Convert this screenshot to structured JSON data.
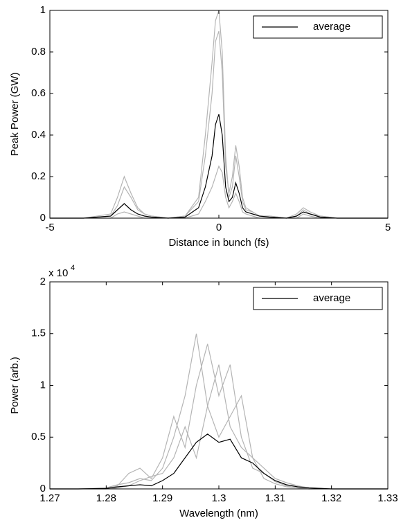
{
  "chart_data": [
    {
      "type": "line",
      "x_label": "Distance in bunch (fs)",
      "y_label": "Peak Power (GW)",
      "xlim": [
        -5,
        5
      ],
      "xticks": [
        -5,
        0,
        5
      ],
      "ylim": [
        0,
        1
      ],
      "yticks": [
        0,
        0.2,
        0.4,
        0.6,
        0.8,
        1
      ],
      "legend": "upper right",
      "x": [
        -5,
        -4,
        -3.2,
        -3,
        -2.8,
        -2.6,
        -2.4,
        -2.2,
        -2,
        -1.5,
        -1,
        -0.6,
        -0.4,
        -0.2,
        -0.1,
        0,
        0.1,
        0.2,
        0.3,
        0.4,
        0.5,
        0.6,
        0.7,
        0.8,
        1,
        1.2,
        1.5,
        2,
        2.3,
        2.5,
        2.7,
        3,
        3.5,
        4,
        5
      ],
      "series": [
        {
          "color": "#b4b4b4",
          "values": [
            0,
            0,
            0.02,
            0.1,
            0.2,
            0.12,
            0.05,
            0.02,
            0.01,
            0,
            0.01,
            0.1,
            0.4,
            0.75,
            0.95,
            1,
            0.8,
            0.3,
            0.1,
            0.15,
            0.3,
            0.2,
            0.08,
            0.04,
            0.03,
            0.01,
            0.01,
            0,
            0.02,
            0.05,
            0.03,
            0.01,
            0,
            0,
            0
          ]
        },
        {
          "color": "#b4b4b4",
          "values": [
            0,
            0,
            0.01,
            0.06,
            0.15,
            0.1,
            0.04,
            0.02,
            0.01,
            0,
            0.01,
            0.08,
            0.3,
            0.6,
            0.85,
            0.9,
            0.7,
            0.25,
            0.12,
            0.2,
            0.35,
            0.25,
            0.1,
            0.05,
            0.03,
            0.01,
            0.01,
            0,
            0.01,
            0.04,
            0.02,
            0.01,
            0,
            0,
            0
          ]
        },
        {
          "color": "#b4b4b4",
          "values": [
            0,
            0,
            0,
            0.02,
            0.03,
            0.02,
            0.01,
            0,
            0,
            0,
            0,
            0.02,
            0.08,
            0.15,
            0.2,
            0.25,
            0.22,
            0.1,
            0.05,
            0.08,
            0.12,
            0.08,
            0.03,
            0.02,
            0.01,
            0,
            0,
            0,
            0,
            0.02,
            0.01,
            0,
            0,
            0,
            0
          ]
        },
        {
          "name": "average",
          "color": "#000000",
          "values": [
            0,
            0,
            0.01,
            0.04,
            0.07,
            0.04,
            0.02,
            0.01,
            0.005,
            0,
            0.005,
            0.05,
            0.15,
            0.3,
            0.45,
            0.5,
            0.4,
            0.15,
            0.08,
            0.1,
            0.17,
            0.12,
            0.05,
            0.03,
            0.02,
            0.01,
            0.005,
            0,
            0.01,
            0.03,
            0.02,
            0.005,
            0,
            0,
            0
          ]
        }
      ]
    },
    {
      "type": "line",
      "x_label": "Wavelength (nm)",
      "y_label": "Power (arb.)",
      "y_exponent": "x 10",
      "y_exponent_power": "4",
      "xlim": [
        1.27,
        1.33
      ],
      "xticks": [
        1.27,
        1.28,
        1.29,
        1.3,
        1.31,
        1.32,
        1.33
      ],
      "ylim": [
        0,
        20000
      ],
      "yticks": [
        0,
        {
          "value": 5000,
          "label": "0.5"
        },
        {
          "value": 10000,
          "label": "1"
        },
        {
          "value": 15000,
          "label": "1.5"
        },
        {
          "value": 20000,
          "label": "2"
        }
      ],
      "legend": "upper right",
      "x": [
        1.27,
        1.275,
        1.28,
        1.282,
        1.284,
        1.286,
        1.288,
        1.29,
        1.292,
        1.294,
        1.296,
        1.298,
        1.3,
        1.302,
        1.304,
        1.306,
        1.308,
        1.31,
        1.312,
        1.314,
        1.316,
        1.32,
        1.33
      ],
      "series": [
        {
          "color": "#b4b4b4",
          "values": [
            0,
            0,
            100,
            400,
            600,
            1000,
            800,
            2000,
            5000,
            9000,
            15000,
            8000,
            12000,
            6000,
            4000,
            3000,
            2000,
            1000,
            600,
            300,
            100,
            0,
            0
          ]
        },
        {
          "color": "#b4b4b4",
          "values": [
            0,
            0,
            0,
            300,
            1500,
            2000,
            1000,
            3000,
            7000,
            4000,
            10000,
            14000,
            9000,
            12000,
            5000,
            2000,
            1500,
            700,
            300,
            100,
            0,
            0,
            0
          ]
        },
        {
          "color": "#b4b4b4",
          "values": [
            0,
            0,
            0,
            100,
            300,
            800,
            1200,
            1500,
            3000,
            6000,
            3000,
            8000,
            5000,
            7000,
            9000,
            3000,
            1000,
            500,
            200,
            100,
            0,
            0,
            0
          ]
        },
        {
          "name": "average",
          "color": "#000000",
          "values": [
            0,
            0,
            50,
            200,
            300,
            400,
            300,
            800,
            1500,
            3000,
            4500,
            5300,
            4500,
            4800,
            3000,
            2500,
            1500,
            800,
            400,
            200,
            100,
            0,
            0
          ]
        }
      ]
    }
  ]
}
